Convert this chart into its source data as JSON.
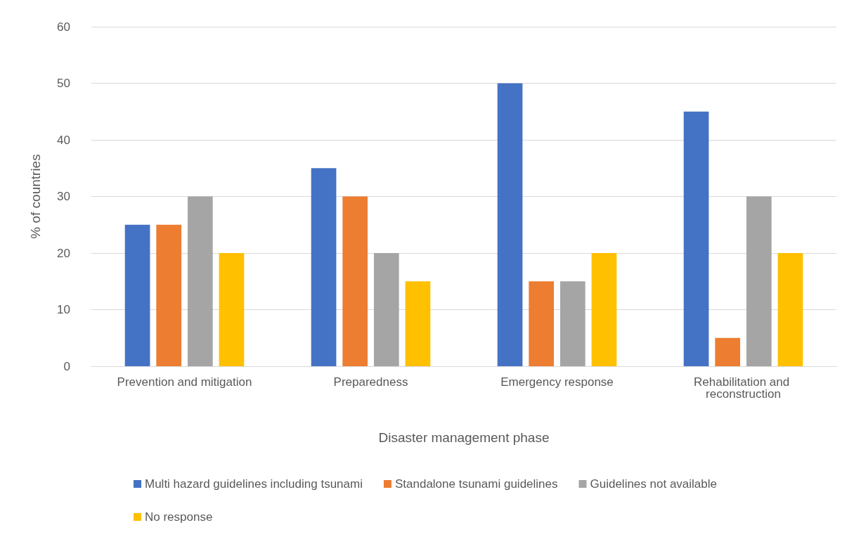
{
  "chart_data": {
    "type": "bar",
    "xlabel": "Disaster management phase",
    "ylabel": "% of countries",
    "categories": [
      "Prevention and mitigation",
      "Preparedness",
      "Emergency response",
      "Rehabilitation and reconstruction"
    ],
    "series": [
      {
        "name": "Multi hazard guidelines including tsunami",
        "color": "#4472c4",
        "values": [
          25,
          35,
          50,
          45
        ]
      },
      {
        "name": "Standalone tsunami guidelines",
        "color": "#ed7d31",
        "values": [
          25,
          30,
          15,
          5
        ]
      },
      {
        "name": "Guidelines not available",
        "color": "#a5a5a5",
        "values": [
          30,
          20,
          15,
          30
        ]
      },
      {
        "name": "No response",
        "color": "#ffc000",
        "values": [
          20,
          15,
          20,
          20
        ]
      }
    ],
    "ylim": [
      0,
      60
    ],
    "yticks": [
      0,
      10,
      20,
      30,
      40,
      50,
      60
    ],
    "grid": "y",
    "legend": "bottom"
  }
}
